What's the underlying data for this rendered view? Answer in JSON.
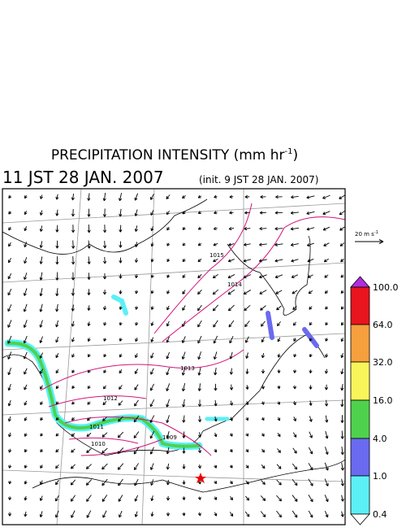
{
  "header": {
    "title": "PRECIPITATION INTENSITY (mm hr",
    "title_unit_exponent": "-1",
    "title_close": ")",
    "valid_time": "11 JST 28 JAN. 2007",
    "init_time": "(init. 9 JST 28 JAN. 2007)"
  },
  "wind_reference": {
    "label": "20 m s",
    "exponent": "-1"
  },
  "colorbar": {
    "labels": [
      "100.0",
      "64.0",
      "32.0",
      "16.0",
      "4.0",
      "1.0",
      "0.4"
    ]
  },
  "isobars": {
    "labels": [
      "1015",
      "1014",
      "1013",
      "1012",
      "1011",
      "1010",
      "1009"
    ]
  }
}
